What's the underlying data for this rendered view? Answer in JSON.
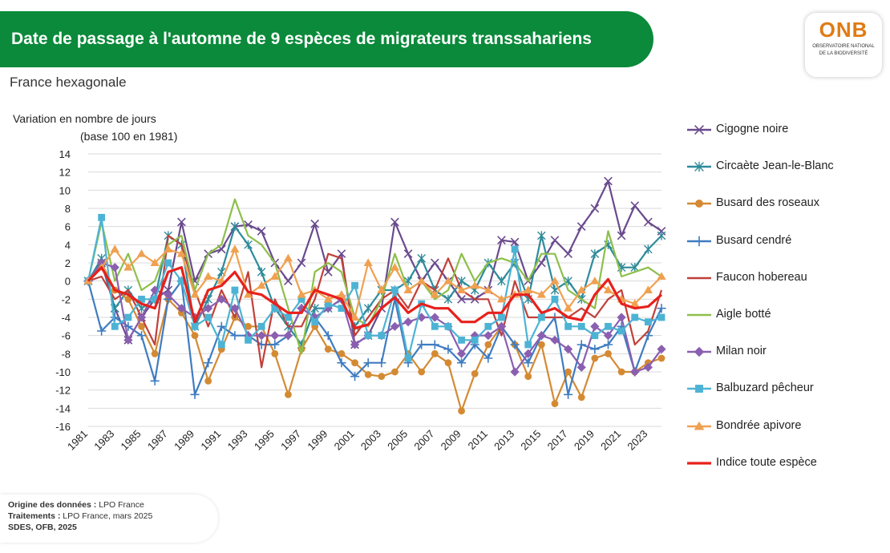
{
  "header": {
    "title": "Date de passage à l'automne de 9 espèces de migrateurs transsahariens",
    "subtitle": "France hexagonale",
    "logo_text_main": "ONB",
    "logo_text_sub1": "OBSERVATOIRE NATIONAL",
    "logo_text_sub2": "DE LA BIODIVERSITÉ"
  },
  "footer": {
    "source_label": "Origine des données :",
    "source_value": "LPO France",
    "processing_label": "Traitements :",
    "processing_value": "LPO France, mars 2025",
    "credit": "SDES, OFB, 2025"
  },
  "chart_data": {
    "type": "line",
    "ylabel_line1": "Variation en nombre de jours",
    "ylabel_line2": "(base 100 en 1981)",
    "ylim": [
      -16,
      14
    ],
    "yticks": [
      14,
      12,
      10,
      8,
      6,
      4,
      2,
      0,
      -2,
      -4,
      -6,
      -8,
      -10,
      -12,
      -14,
      -16
    ],
    "x": [
      1981,
      1982,
      1983,
      1984,
      1985,
      1986,
      1987,
      1988,
      1989,
      1990,
      1991,
      1992,
      1993,
      1994,
      1995,
      1996,
      1997,
      1998,
      1999,
      2000,
      2001,
      2002,
      2003,
      2004,
      2005,
      2006,
      2007,
      2008,
      2009,
      2010,
      2011,
      2012,
      2013,
      2014,
      2015,
      2016,
      2017,
      2018,
      2019,
      2020,
      2021,
      2022,
      2023,
      2024
    ],
    "xtick_labels": [
      1981,
      1983,
      1985,
      1987,
      1989,
      1991,
      1993,
      1995,
      1997,
      1999,
      2001,
      2003,
      2005,
      2007,
      2009,
      2011,
      2013,
      2015,
      2017,
      2019,
      2021,
      2023
    ],
    "legend_position": "right",
    "grid": "horizontal",
    "series": [
      {
        "name": "Cigogne noire",
        "color": "#6a4a8e",
        "marker": "x",
        "values": [
          0,
          2,
          -3,
          -6.5,
          -4,
          -2,
          -1,
          6.5,
          0,
          3,
          3.5,
          6,
          6.2,
          5.5,
          2,
          0,
          2,
          6.3,
          1,
          3,
          -7,
          -6,
          -3,
          6.5,
          3,
          0,
          2,
          0,
          -2,
          -2,
          -1,
          4.5,
          4.3,
          0,
          2,
          4.5,
          3,
          6,
          8,
          11,
          5,
          8.3,
          6.5,
          5.5
        ]
      },
      {
        "name": "Circaète Jean-le-Blanc",
        "color": "#2e8b9a",
        "marker": "star",
        "values": [
          0,
          2.5,
          -3,
          -1,
          -3,
          -2,
          5,
          4,
          -5,
          -2,
          1,
          6,
          4,
          1,
          -3,
          -5,
          -7,
          -3,
          -3,
          -2,
          -5,
          -3,
          -1,
          -1,
          0,
          2.5,
          -1,
          -2,
          0,
          -1,
          2,
          0,
          2,
          -2,
          5,
          -1,
          0,
          -2,
          3,
          4,
          1.5,
          1.5,
          3.5,
          5
        ]
      },
      {
        "name": "Busard des roseaux",
        "color": "#d48a33",
        "marker": "circle",
        "values": [
          0,
          2,
          -1,
          -2,
          -5,
          -8,
          -2,
          -3.5,
          -6,
          -11,
          -7.5,
          -4,
          -5,
          -5,
          -8,
          -12.5,
          -7.5,
          -5,
          -7.5,
          -8,
          -9,
          -10.3,
          -10.5,
          -10,
          -8,
          -10,
          -8,
          -9,
          -14.3,
          -10.2,
          -7,
          -5,
          -7,
          -10.5,
          -7,
          -13.5,
          -10,
          -12.8,
          -8.5,
          -8,
          -10,
          -10,
          -9,
          -8.5
        ]
      },
      {
        "name": "Busard cendré",
        "color": "#3f7cc0",
        "marker": "plus",
        "values": [
          0,
          -5.5,
          -4,
          -5,
          -6,
          -11,
          -2,
          0,
          -12.5,
          -9,
          -5,
          -6,
          -6,
          -7,
          -7,
          -6,
          -3,
          -4,
          -6,
          -9,
          -10.5,
          -9,
          -9,
          -2,
          -9,
          -7,
          -7,
          -7.5,
          -9,
          -7,
          -8.5,
          -5,
          -7,
          -9,
          -6,
          -4,
          -12.5,
          -7,
          -7.5,
          -7,
          -5,
          -10,
          -6,
          -3
        ]
      },
      {
        "name": "Faucon hobereau",
        "color": "#c0403a",
        "marker": "none",
        "values": [
          0,
          0.5,
          -2,
          -1,
          -4,
          -7,
          5,
          4,
          -1,
          -5,
          -1,
          -4,
          1,
          -9.5,
          -2,
          -5,
          -5,
          -2,
          3,
          2.5,
          -6,
          -4,
          -2,
          -1,
          -3,
          0,
          -1,
          2.5,
          -1,
          -2,
          -2,
          -6,
          0,
          -4,
          -4,
          -4,
          -4,
          -3,
          -4,
          -2,
          -1,
          -7,
          -5.5,
          -1
        ]
      },
      {
        "name": "Aigle botté",
        "color": "#8dbf4a",
        "marker": "none",
        "values": [
          0,
          6.5,
          0,
          3,
          -1,
          0,
          4,
          5,
          -1,
          3,
          4,
          9,
          5,
          4,
          2,
          -3,
          -8,
          1,
          2,
          1,
          -4,
          -5,
          -2,
          3,
          -1,
          0,
          -2,
          -1,
          3,
          0,
          2,
          2.5,
          2,
          0,
          3,
          3,
          -1,
          -2,
          -3,
          5.5,
          0.5,
          1,
          1.5,
          0.5
        ]
      },
      {
        "name": "Milan noir",
        "color": "#8a5fb0",
        "marker": "diamond",
        "values": [
          0,
          2,
          1.5,
          -6.5,
          -4,
          -1,
          -1.5,
          -3,
          -4,
          -3,
          -2,
          -3,
          -6,
          -6,
          -6,
          -6,
          -3,
          -4,
          -3,
          -2,
          -7,
          -6,
          -6,
          -5,
          -4.5,
          -4,
          -4,
          -5,
          -8,
          -6,
          -6,
          -5,
          -10,
          -8,
          -6,
          -6.5,
          -7.5,
          -9.5,
          -5,
          -6,
          -4,
          -10,
          -9.5,
          -7.5
        ]
      },
      {
        "name": "Balbuzard pêcheur",
        "color": "#4db3d4",
        "marker": "square",
        "values": [
          0,
          7,
          -5,
          -4,
          -2,
          -2,
          2,
          0,
          -5,
          -4,
          -7,
          -1,
          -6.5,
          -5,
          -3,
          -4,
          -2,
          -4.5,
          -2.5,
          -3,
          -0.5,
          -6,
          -6,
          -1,
          -8.5,
          -2.5,
          -5,
          -5,
          -6.5,
          -6.5,
          -5,
          -4,
          3.5,
          -7,
          -4,
          -2,
          -5,
          -5,
          -6,
          -5,
          -5.5,
          -4,
          -4.5,
          -4
        ]
      },
      {
        "name": "Bondrée apivore",
        "color": "#f0a050",
        "marker": "triangle",
        "values": [
          0,
          1.5,
          3.5,
          1.5,
          3,
          2,
          3.5,
          3,
          -1.5,
          0.5,
          0,
          3.5,
          -1.5,
          -0.5,
          0.5,
          2.5,
          -1.5,
          -1,
          -2,
          -1.5,
          -4,
          2,
          -1,
          1.5,
          -1,
          0,
          -1.5,
          0,
          -1,
          -0.5,
          -1,
          -2,
          -1.5,
          -1,
          -1.5,
          0,
          -3,
          -1,
          0,
          -1,
          -2,
          -2.5,
          -1,
          0.5
        ]
      },
      {
        "name": "Indice toute espèce",
        "color": "#e8201c",
        "marker": "none",
        "bold": true,
        "values": [
          0,
          1.5,
          -1,
          -1.5,
          -2.5,
          -3,
          1,
          1.5,
          -4.5,
          -1,
          -0.5,
          1,
          -1.2,
          -1.5,
          -2.5,
          -3.5,
          -3.5,
          -1,
          -1.5,
          -2,
          -5.2,
          -4.8,
          -3,
          -1.8,
          -3.5,
          -2.5,
          -3,
          -3,
          -4.5,
          -4.5,
          -3.5,
          -3.5,
          -1.5,
          -1.5,
          -3.5,
          -3,
          -4,
          -4.3,
          -1.5,
          0.2,
          -2.5,
          -3,
          -2.8,
          -1.5
        ]
      }
    ]
  }
}
